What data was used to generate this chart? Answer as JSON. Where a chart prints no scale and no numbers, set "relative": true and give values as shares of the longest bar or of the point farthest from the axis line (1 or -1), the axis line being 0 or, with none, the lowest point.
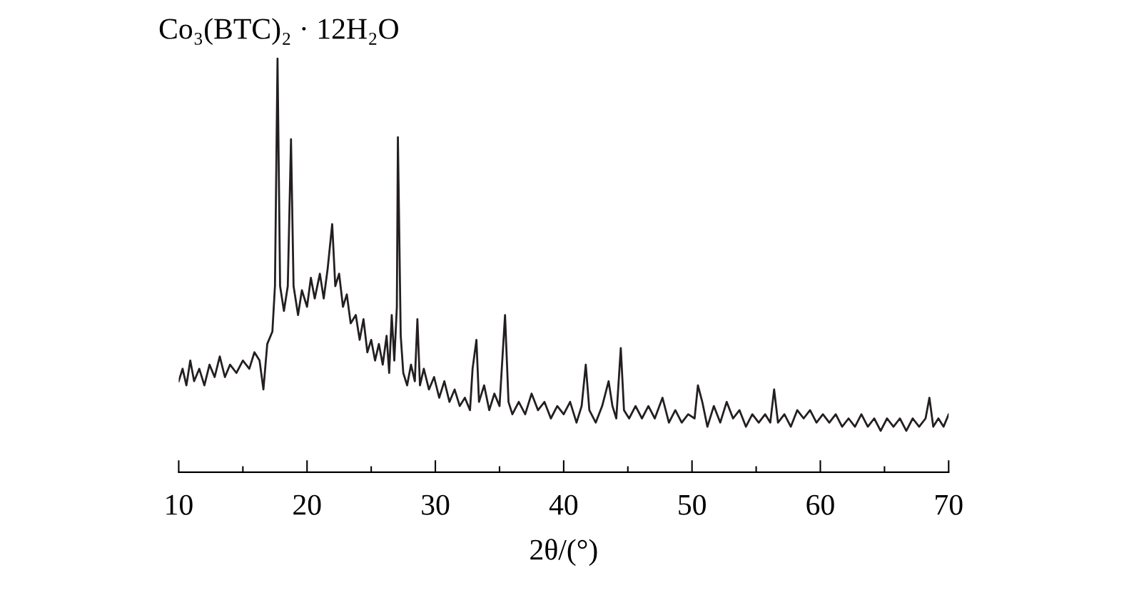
{
  "chart_data": {
    "type": "line",
    "title": "Co₃(BTC)₂ · 12H₂O",
    "xlabel": "2θ/(°)",
    "relative": true,
    "xlim": [
      10,
      70
    ],
    "xticks": [
      10,
      {
        "value": 15,
        "label": null
      },
      20,
      {
        "value": 25,
        "label": null
      },
      30,
      {
        "value": 35,
        "label": null
      },
      40,
      {
        "value": 45,
        "label": null
      },
      50,
      {
        "value": 55,
        "label": null
      },
      60,
      {
        "value": 65,
        "label": null
      },
      70
    ],
    "series": [
      {
        "color": "#231f20",
        "x": [
          10.0,
          10.3,
          10.6,
          10.9,
          11.2,
          11.6,
          12.0,
          12.4,
          12.8,
          13.2,
          13.6,
          14.0,
          14.5,
          15.0,
          15.5,
          15.9,
          16.3,
          16.6,
          16.9,
          17.3,
          17.5,
          17.7,
          17.9,
          18.2,
          18.5,
          18.75,
          18.95,
          19.3,
          19.6,
          20.0,
          20.3,
          20.6,
          21.0,
          21.3,
          21.6,
          21.96,
          22.2,
          22.5,
          22.8,
          23.1,
          23.4,
          23.8,
          24.1,
          24.4,
          24.7,
          25.0,
          25.3,
          25.6,
          25.9,
          26.2,
          26.4,
          26.6,
          26.8,
          27.0,
          27.08,
          27.3,
          27.5,
          27.8,
          28.1,
          28.4,
          28.6,
          28.8,
          29.1,
          29.5,
          29.9,
          30.3,
          30.7,
          31.1,
          31.5,
          31.9,
          32.3,
          32.7,
          32.9,
          33.2,
          33.4,
          33.8,
          34.2,
          34.6,
          35.0,
          35.43,
          35.7,
          36.0,
          36.5,
          37.0,
          37.5,
          38.0,
          38.5,
          39.0,
          39.5,
          40.0,
          40.5,
          41.0,
          41.4,
          41.72,
          42.0,
          42.5,
          43.0,
          43.5,
          43.8,
          44.1,
          44.45,
          44.7,
          45.1,
          45.6,
          46.1,
          46.6,
          47.1,
          47.7,
          48.2,
          48.7,
          49.2,
          49.7,
          50.2,
          50.46,
          50.8,
          51.2,
          51.7,
          52.2,
          52.7,
          53.2,
          53.7,
          54.2,
          54.7,
          55.2,
          55.7,
          56.1,
          56.4,
          56.7,
          57.2,
          57.7,
          58.2,
          58.7,
          59.2,
          59.7,
          60.2,
          60.7,
          61.2,
          61.7,
          62.2,
          62.7,
          63.2,
          63.7,
          64.2,
          64.7,
          65.2,
          65.7,
          66.2,
          66.7,
          67.2,
          67.7,
          68.2,
          68.5,
          68.8,
          69.2,
          69.6,
          70.0
        ],
        "values": [
          0.22,
          0.25,
          0.21,
          0.27,
          0.22,
          0.25,
          0.21,
          0.26,
          0.23,
          0.28,
          0.23,
          0.26,
          0.24,
          0.27,
          0.25,
          0.29,
          0.27,
          0.2,
          0.31,
          0.34,
          0.45,
          1.0,
          0.45,
          0.39,
          0.45,
          0.805,
          0.45,
          0.38,
          0.44,
          0.4,
          0.47,
          0.42,
          0.48,
          0.42,
          0.49,
          0.6,
          0.45,
          0.48,
          0.4,
          0.43,
          0.36,
          0.38,
          0.32,
          0.37,
          0.29,
          0.32,
          0.27,
          0.31,
          0.26,
          0.33,
          0.24,
          0.38,
          0.27,
          0.4,
          0.81,
          0.33,
          0.24,
          0.21,
          0.26,
          0.22,
          0.37,
          0.21,
          0.25,
          0.2,
          0.23,
          0.18,
          0.22,
          0.17,
          0.2,
          0.16,
          0.18,
          0.15,
          0.25,
          0.32,
          0.17,
          0.21,
          0.15,
          0.19,
          0.16,
          0.38,
          0.17,
          0.14,
          0.17,
          0.14,
          0.19,
          0.15,
          0.17,
          0.13,
          0.16,
          0.14,
          0.17,
          0.12,
          0.16,
          0.26,
          0.15,
          0.12,
          0.16,
          0.22,
          0.16,
          0.13,
          0.3,
          0.15,
          0.13,
          0.16,
          0.13,
          0.16,
          0.13,
          0.18,
          0.12,
          0.15,
          0.12,
          0.14,
          0.13,
          0.21,
          0.17,
          0.11,
          0.16,
          0.12,
          0.17,
          0.13,
          0.15,
          0.11,
          0.14,
          0.12,
          0.14,
          0.12,
          0.2,
          0.12,
          0.14,
          0.11,
          0.15,
          0.13,
          0.15,
          0.12,
          0.14,
          0.12,
          0.14,
          0.11,
          0.13,
          0.11,
          0.14,
          0.11,
          0.13,
          0.1,
          0.13,
          0.11,
          0.13,
          0.1,
          0.13,
          0.11,
          0.13,
          0.18,
          0.11,
          0.13,
          0.11,
          0.14
        ]
      }
    ]
  }
}
